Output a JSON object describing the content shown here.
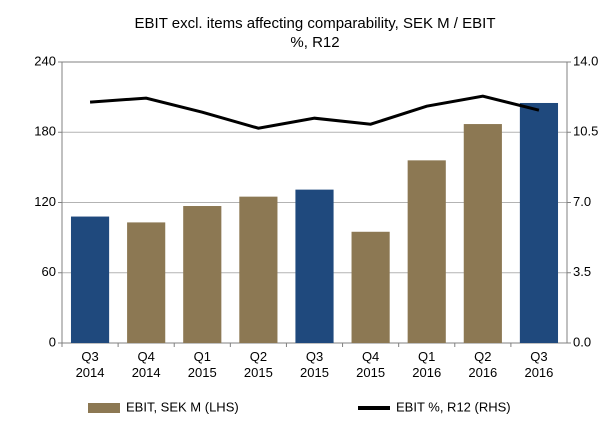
{
  "chart_data": {
    "type": "bar-line",
    "title": "EBIT excl. items affecting comparability, SEK M / EBIT %, R12",
    "categories": [
      "Q3\n2014",
      "Q4\n2014",
      "Q1\n2015",
      "Q2\n2015",
      "Q3\n2015",
      "Q4\n2015",
      "Q1\n2016",
      "Q2\n2016",
      "Q3\n2016"
    ],
    "series": [
      {
        "name": "EBIT, SEK M (LHS)",
        "type": "bar",
        "color": "#8c7853",
        "colors": [
          "#1f497d",
          "#8c7853",
          "#8c7853",
          "#8c7853",
          "#1f497d",
          "#8c7853",
          "#8c7853",
          "#8c7853",
          "#1f497d"
        ],
        "values": [
          108,
          103,
          117,
          125,
          131,
          95,
          156,
          187,
          205
        ]
      },
      {
        "name": "EBIT %, R12 (RHS)",
        "type": "line",
        "axis": "y2",
        "color": "#000000",
        "values": [
          12.0,
          12.2,
          11.5,
          10.7,
          11.2,
          10.9,
          11.8,
          12.3,
          11.6
        ]
      }
    ],
    "ylim": [
      0,
      240
    ],
    "yticks": [
      0,
      60,
      120,
      180,
      240
    ],
    "y2lim": [
      0,
      14
    ],
    "y2ticks": [
      {
        "value": 0,
        "label": "0.0"
      },
      {
        "value": 3.5,
        "label": "3.5"
      },
      {
        "value": 7,
        "label": "7.0"
      },
      {
        "value": 10.5,
        "label": "10.5"
      },
      {
        "value": 14,
        "label": "14.0"
      }
    ],
    "grid": true,
    "legend": "bottom"
  }
}
